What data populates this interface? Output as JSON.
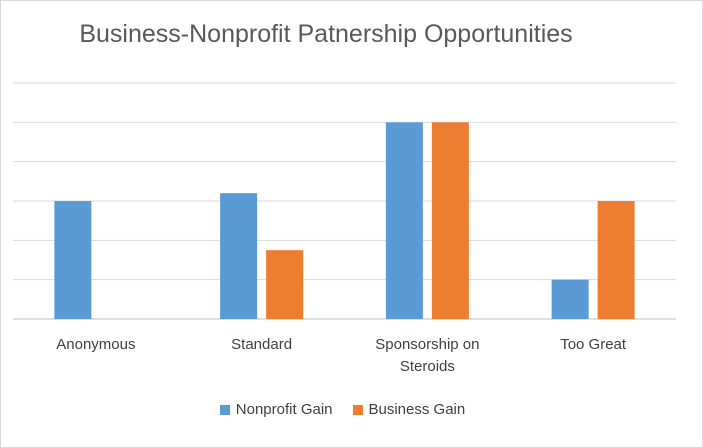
{
  "chart_data": {
    "type": "bar",
    "title": "Business-Nonprofit Patnership Opportunities",
    "xlabel": "",
    "ylabel": "",
    "categories": [
      "Anonymous",
      "Standard",
      "Sponsorship on Steroids",
      "Too Great"
    ],
    "series": [
      {
        "name": "Nonprofit Gain",
        "color": "#5b9bd5",
        "values": [
          3,
          3.2,
          5,
          1
        ]
      },
      {
        "name": "Business Gain",
        "color": "#ed7d31",
        "values": [
          0,
          1.75,
          5,
          3
        ]
      }
    ],
    "ylim": [
      0,
      6
    ],
    "grid": true,
    "y_tick_labels_shown": false,
    "legend_position": "bottom"
  }
}
